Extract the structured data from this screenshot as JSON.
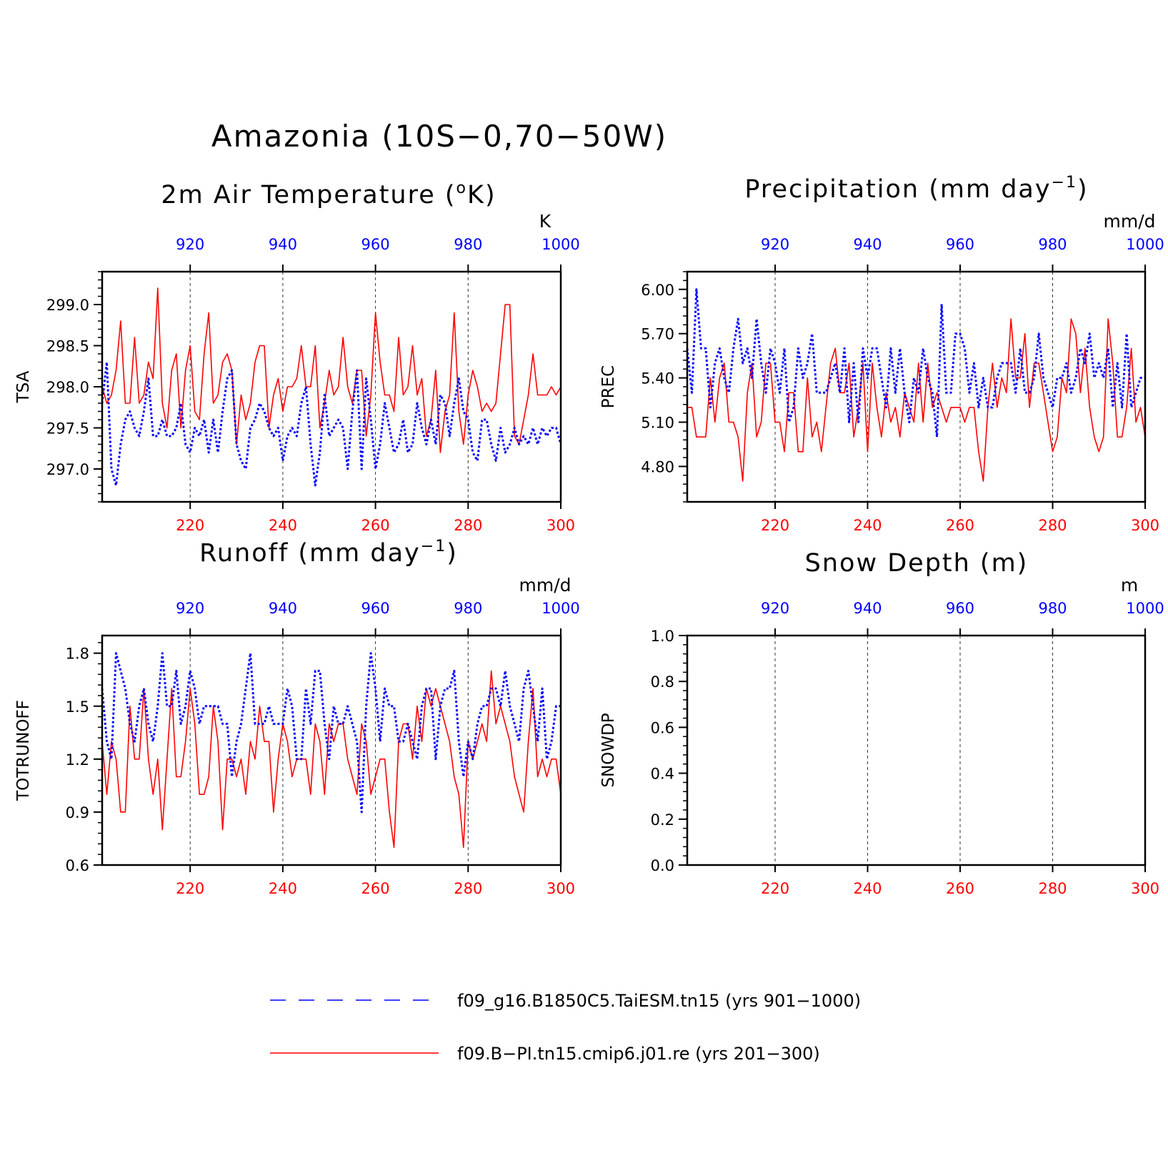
{
  "figure": {
    "title": "Amazonia (10S−0,70−50W)",
    "legend": [
      {
        "label": "f09_g16.B1850C5.TaiESM.tn15 (yrs 901−1000)",
        "color": "#0000ff",
        "style": "dashed"
      },
      {
        "label": "f09.B−PI.tn15.cmip6.j01.re (yrs 201−300)",
        "color": "#ff0000",
        "style": "solid"
      }
    ],
    "colors": {
      "blue_series": "#0000ff",
      "red_series": "#ff0000",
      "axis": "#000000"
    }
  },
  "chart_data": [
    {
      "type": "line",
      "title": "2m Air Temperature (°K)",
      "title_parts": {
        "main": "2m Air Temperature (",
        "sup": "o",
        "tail": "K)"
      },
      "ylabel": "TSA",
      "units": "K",
      "ylim": [
        296.6,
        299.4
      ],
      "yticks": [
        297.0,
        297.5,
        298.0,
        298.5,
        299.0
      ],
      "ytick_labels": [
        "297.0",
        "297.5",
        "298.0",
        "298.5",
        "299.0"
      ],
      "ydecimals": 1,
      "x_bottom": {
        "range": [
          201,
          300
        ],
        "ticks": [
          220,
          240,
          260,
          280,
          300
        ],
        "color": "#ff0000"
      },
      "x_top": {
        "range": [
          901,
          1000
        ],
        "ticks": [
          920,
          940,
          960,
          980,
          1000
        ],
        "color": "#0000ff"
      },
      "grid": "vertical-dashed",
      "series": [
        {
          "name": "f09.B−PI.tn15.cmip6.j01.re (yrs 201−300)",
          "axis": "bottom",
          "style": "solid",
          "x_start": 201,
          "values": [
            298.0,
            297.8,
            297.9,
            298.2,
            298.8,
            297.8,
            297.8,
            298.6,
            297.8,
            297.9,
            298.3,
            298.1,
            299.2,
            297.8,
            297.5,
            298.2,
            298.4,
            297.5,
            298.2,
            298.5,
            297.7,
            297.6,
            298.4,
            298.9,
            297.8,
            297.9,
            298.3,
            298.4,
            298.2,
            297.3,
            297.9,
            297.6,
            297.8,
            298.3,
            298.5,
            298.5,
            297.5,
            297.9,
            298.1,
            297.7,
            298.0,
            298.0,
            298.1,
            298.5,
            298.0,
            298.0,
            298.5,
            297.5,
            297.8,
            298.2,
            297.9,
            298.0,
            298.6,
            298.0,
            297.8,
            298.2,
            298.2,
            297.4,
            297.9,
            298.9,
            298.3,
            297.9,
            297.9,
            297.7,
            298.6,
            297.9,
            298.0,
            298.5,
            297.9,
            298.1,
            297.4,
            297.6,
            298.2,
            297.2,
            297.7,
            297.9,
            298.9,
            297.7,
            297.3,
            297.9,
            298.2,
            298.0,
            297.7,
            297.8,
            297.7,
            297.8,
            298.4,
            299.0,
            299.0,
            297.4,
            297.3,
            297.6,
            297.9,
            298.4,
            297.9,
            297.9,
            297.9,
            298.0,
            297.9,
            298.0
          ]
        },
        {
          "name": "f09_g16.B1850C5.TaiESM.tn15 (yrs 901−1000)",
          "axis": "top",
          "style": "dashed",
          "x_start": 901,
          "values": [
            297.8,
            298.3,
            297.0,
            296.8,
            297.3,
            297.6,
            297.7,
            297.5,
            297.4,
            297.7,
            298.1,
            297.4,
            297.4,
            297.6,
            297.4,
            297.4,
            297.5,
            297.8,
            297.3,
            297.2,
            297.5,
            297.4,
            297.6,
            297.2,
            297.6,
            297.2,
            297.7,
            298.1,
            298.2,
            297.3,
            297.1,
            297.0,
            297.5,
            297.6,
            297.8,
            297.7,
            297.5,
            297.4,
            297.5,
            297.1,
            297.4,
            297.5,
            297.4,
            297.8,
            298.0,
            297.3,
            296.8,
            297.2,
            297.9,
            297.4,
            297.5,
            297.6,
            297.5,
            297.0,
            297.7,
            298.2,
            297.0,
            298.1,
            297.6,
            297.0,
            297.3,
            297.8,
            297.5,
            297.2,
            297.3,
            297.6,
            297.2,
            297.3,
            297.8,
            297.5,
            297.3,
            297.6,
            297.3,
            297.9,
            297.8,
            297.4,
            297.8,
            298.1,
            297.7,
            297.6,
            297.2,
            297.1,
            297.6,
            297.6,
            297.3,
            297.1,
            297.5,
            297.2,
            297.3,
            297.5,
            297.3,
            297.4,
            297.3,
            297.5,
            297.3,
            297.5,
            297.4,
            297.5,
            297.5,
            297.3
          ]
        }
      ]
    },
    {
      "type": "line",
      "title": "Precipitation (mm day⁻¹)",
      "title_parts": {
        "main": "Precipitation (mm day",
        "sup": "−1",
        "tail": ")"
      },
      "ylabel": "PREC",
      "units": "mm/d",
      "ylim": [
        4.56,
        6.12
      ],
      "yticks": [
        4.8,
        5.1,
        5.4,
        5.7,
        6.0
      ],
      "ytick_labels": [
        "4.80",
        "5.10",
        "5.40",
        "5.70",
        "6.00"
      ],
      "ydecimals": 2,
      "x_bottom": {
        "range": [
          201,
          300
        ],
        "ticks": [
          220,
          240,
          260,
          280,
          300
        ],
        "color": "#ff0000"
      },
      "x_top": {
        "range": [
          901,
          1000
        ],
        "ticks": [
          920,
          940,
          960,
          980,
          1000
        ],
        "color": "#0000ff"
      },
      "grid": "vertical-dashed",
      "series": [
        {
          "name": "f09.B−PI.tn15.cmip6.j01.re (yrs 201−300)",
          "axis": "bottom",
          "style": "solid",
          "x_start": 201,
          "values": [
            5.2,
            5.2,
            5.0,
            5.0,
            5.0,
            5.4,
            5.1,
            5.4,
            5.5,
            5.1,
            5.1,
            5.0,
            4.7,
            5.3,
            5.5,
            5.0,
            5.1,
            5.5,
            5.5,
            5.1,
            5.1,
            4.9,
            5.3,
            5.3,
            4.9,
            4.9,
            5.4,
            5.0,
            5.1,
            4.9,
            5.2,
            5.5,
            5.6,
            5.3,
            5.3,
            5.5,
            5.0,
            5.2,
            5.5,
            4.9,
            5.5,
            5.2,
            5.0,
            5.3,
            5.1,
            5.2,
            5.0,
            5.3,
            5.2,
            5.1,
            5.5,
            5.1,
            5.5,
            5.2,
            5.3,
            5.2,
            5.1,
            5.2,
            5.2,
            5.2,
            5.1,
            5.2,
            5.2,
            4.9,
            4.7,
            5.2,
            5.5,
            5.2,
            5.4,
            5.3,
            5.8,
            5.4,
            5.4,
            5.7,
            5.2,
            5.5,
            5.5,
            5.3,
            5.1,
            4.9,
            5.0,
            5.4,
            5.3,
            5.8,
            5.7,
            5.3,
            5.6,
            5.2,
            5.0,
            4.9,
            5.0,
            5.8,
            5.5,
            5.0,
            5.0,
            5.2,
            5.6,
            5.1,
            5.2,
            5.0
          ]
        },
        {
          "name": "f09_g16.B1850C5.TaiESM.tn15 (yrs 901−1000)",
          "axis": "top",
          "style": "dashed",
          "x_start": 901,
          "values": [
            5.6,
            5.3,
            6.0,
            5.6,
            5.6,
            5.2,
            5.5,
            5.6,
            5.4,
            5.3,
            5.6,
            5.8,
            5.5,
            5.6,
            5.4,
            5.8,
            5.5,
            5.3,
            5.6,
            5.5,
            5.3,
            5.6,
            5.1,
            5.2,
            5.6,
            5.4,
            5.5,
            5.7,
            5.3,
            5.3,
            5.3,
            5.4,
            5.5,
            5.3,
            5.6,
            5.1,
            5.5,
            5.1,
            5.6,
            5.4,
            5.6,
            5.6,
            5.4,
            5.2,
            5.6,
            5.3,
            5.6,
            5.3,
            5.1,
            5.4,
            5.3,
            5.6,
            5.4,
            5.3,
            5.0,
            5.9,
            5.3,
            5.3,
            5.7,
            5.7,
            5.6,
            5.3,
            5.5,
            5.2,
            5.4,
            5.2,
            5.2,
            5.4,
            5.5,
            5.5,
            5.5,
            5.3,
            5.6,
            5.3,
            5.3,
            5.4,
            5.7,
            5.4,
            5.3,
            5.2,
            5.4,
            5.4,
            5.5,
            5.3,
            5.4,
            5.6,
            5.5,
            5.7,
            5.4,
            5.5,
            5.4,
            5.6,
            5.2,
            5.5,
            5.2,
            5.7,
            5.2,
            5.3,
            5.4,
            5.4
          ]
        }
      ]
    },
    {
      "type": "line",
      "title": "Runoff (mm day⁻¹)",
      "title_parts": {
        "main": "Runoff (mm day",
        "sup": "−1",
        "tail": ")"
      },
      "ylabel": "TOTRUNOFF",
      "units": "mm/d",
      "ylim": [
        0.6,
        1.9
      ],
      "yticks": [
        0.6,
        0.9,
        1.2,
        1.5,
        1.8
      ],
      "ytick_labels": [
        "0.6",
        "0.9",
        "1.2",
        "1.5",
        "1.8"
      ],
      "ydecimals": 1,
      "x_bottom": {
        "range": [
          201,
          300
        ],
        "ticks": [
          220,
          240,
          260,
          280,
          300
        ],
        "color": "#ff0000"
      },
      "x_top": {
        "range": [
          901,
          1000
        ],
        "ticks": [
          920,
          940,
          960,
          980,
          1000
        ],
        "color": "#0000ff"
      },
      "grid": "vertical-dashed",
      "series": [
        {
          "name": "f09.B−PI.tn15.cmip6.j01.re (yrs 201−300)",
          "axis": "bottom",
          "style": "solid",
          "x_start": 201,
          "values": [
            1.3,
            1.0,
            1.3,
            1.2,
            0.9,
            0.9,
            1.5,
            1.2,
            1.2,
            1.6,
            1.2,
            1.0,
            1.2,
            0.8,
            1.2,
            1.6,
            1.1,
            1.1,
            1.3,
            1.6,
            1.4,
            1.0,
            1.0,
            1.1,
            1.5,
            1.3,
            0.8,
            1.2,
            1.2,
            1.1,
            1.2,
            1.0,
            1.3,
            1.2,
            1.5,
            1.3,
            1.3,
            0.9,
            1.2,
            1.4,
            1.3,
            1.1,
            1.2,
            1.2,
            1.2,
            1.0,
            1.4,
            1.3,
            1.0,
            1.4,
            1.3,
            1.4,
            1.4,
            1.2,
            1.1,
            1.0,
            1.4,
            1.3,
            1.0,
            1.1,
            1.2,
            1.2,
            0.9,
            0.7,
            1.3,
            1.4,
            1.4,
            1.2,
            1.5,
            1.3,
            1.6,
            1.5,
            1.6,
            1.5,
            1.4,
            1.3,
            1.1,
            1.0,
            0.7,
            1.3,
            1.2,
            1.3,
            1.4,
            1.3,
            1.7,
            1.4,
            1.5,
            1.4,
            1.3,
            1.1,
            1.0,
            0.9,
            1.3,
            1.6,
            1.1,
            1.2,
            1.1,
            1.2,
            1.2,
            1.0
          ]
        },
        {
          "name": "f09_g16.B1850C5.TaiESM.tn15 (yrs 901−1000)",
          "axis": "top",
          "style": "dashed",
          "x_start": 901,
          "values": [
            1.6,
            1.3,
            1.2,
            1.8,
            1.7,
            1.6,
            1.4,
            1.3,
            1.5,
            1.6,
            1.4,
            1.3,
            1.5,
            1.8,
            1.5,
            1.5,
            1.7,
            1.4,
            1.5,
            1.7,
            1.6,
            1.4,
            1.5,
            1.5,
            1.5,
            1.5,
            1.4,
            1.4,
            1.1,
            1.3,
            1.4,
            1.6,
            1.8,
            1.4,
            1.4,
            1.4,
            1.5,
            1.4,
            1.4,
            1.4,
            1.6,
            1.5,
            1.2,
            1.2,
            1.6,
            1.4,
            1.7,
            1.7,
            1.4,
            1.2,
            1.5,
            1.4,
            1.4,
            1.5,
            1.4,
            1.3,
            0.9,
            1.5,
            1.8,
            1.6,
            1.3,
            1.6,
            1.5,
            1.5,
            1.3,
            1.3,
            1.4,
            1.3,
            1.2,
            1.5,
            1.6,
            1.6,
            1.2,
            1.5,
            1.6,
            1.6,
            1.7,
            1.3,
            1.1,
            1.3,
            1.2,
            1.4,
            1.5,
            1.5,
            1.6,
            1.6,
            1.5,
            1.7,
            1.5,
            1.4,
            1.3,
            1.6,
            1.7,
            1.5,
            1.3,
            1.6,
            1.2,
            1.3,
            1.5,
            1.5
          ]
        }
      ]
    },
    {
      "type": "line",
      "title": "Snow Depth (m)",
      "title_parts": {
        "main": "Snow Depth (m)",
        "sup": "",
        "tail": ""
      },
      "ylabel": "SNOWDP",
      "units": "m",
      "ylim": [
        0.0,
        1.0
      ],
      "yticks": [
        0.0,
        0.2,
        0.4,
        0.6,
        0.8,
        1.0
      ],
      "ytick_labels": [
        "0.0",
        "0.2",
        "0.4",
        "0.6",
        "0.8",
        "1.0"
      ],
      "ydecimals": 1,
      "x_bottom": {
        "range": [
          201,
          300
        ],
        "ticks": [
          220,
          240,
          260,
          280,
          300
        ],
        "color": "#ff0000"
      },
      "x_top": {
        "range": [
          901,
          1000
        ],
        "ticks": [
          920,
          940,
          960,
          980,
          1000
        ],
        "color": "#0000ff"
      },
      "grid": "vertical-dashed",
      "series": []
    }
  ]
}
